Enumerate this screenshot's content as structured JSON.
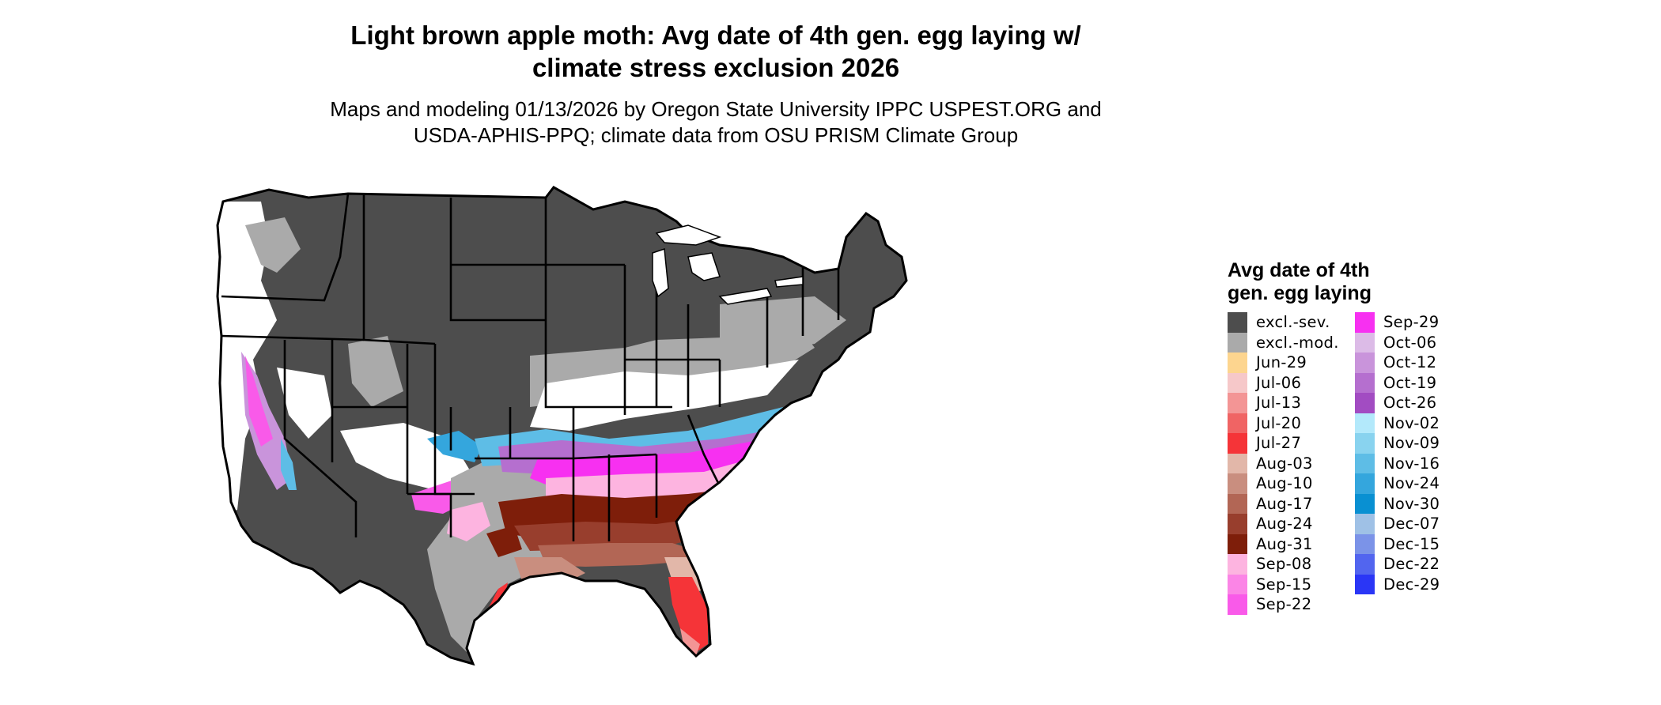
{
  "title": {
    "line1": "Light brown apple moth: Avg date of 4th gen. egg laying w/",
    "line2": "climate stress exclusion 2026"
  },
  "subtitle": {
    "line1": "Maps and modeling 01/13/2026 by Oregon State University IPPC USPEST.ORG and",
    "line2": "USDA-APHIS-PPQ; climate data from OSU PRISM Climate Group"
  },
  "legend": {
    "title_line1": "Avg date of 4th",
    "title_line2": "gen. egg laying",
    "items": [
      {
        "label": "excl.-sev.",
        "color": "#4d4d4d"
      },
      {
        "label": "excl.-mod.",
        "color": "#aaaaaa"
      },
      {
        "label": "Jun-29",
        "color": "#fdd58f"
      },
      {
        "label": "Jul-06",
        "color": "#f6c8c9"
      },
      {
        "label": "Jul-13",
        "color": "#f39595"
      },
      {
        "label": "Jul-20",
        "color": "#f06464"
      },
      {
        "label": "Jul-27",
        "color": "#f53438"
      },
      {
        "label": "Aug-03",
        "color": "#e2b7a9"
      },
      {
        "label": "Aug-10",
        "color": "#c98e7f"
      },
      {
        "label": "Aug-17",
        "color": "#b26655"
      },
      {
        "label": "Aug-24",
        "color": "#983e2d"
      },
      {
        "label": "Aug-31",
        "color": "#7e1e0a"
      },
      {
        "label": "Sep-08",
        "color": "#fdb4e0"
      },
      {
        "label": "Sep-15",
        "color": "#fb85e6"
      },
      {
        "label": "Sep-22",
        "color": "#f95ae9"
      },
      {
        "label": "Sep-29",
        "color": "#f730f1"
      },
      {
        "label": "Oct-06",
        "color": "#dcbbe7"
      },
      {
        "label": "Oct-12",
        "color": "#c994db"
      },
      {
        "label": "Oct-19",
        "color": "#b56fcf"
      },
      {
        "label": "Oct-26",
        "color": "#a24cc2"
      },
      {
        "label": "Nov-02",
        "color": "#b3e9fb"
      },
      {
        "label": "Nov-09",
        "color": "#89d3ef"
      },
      {
        "label": "Nov-16",
        "color": "#5ebde6"
      },
      {
        "label": "Nov-24",
        "color": "#34a6dd"
      },
      {
        "label": "Nov-30",
        "color": "#0990d2"
      },
      {
        "label": "Dec-07",
        "color": "#9fc1e6"
      },
      {
        "label": "Dec-15",
        "color": "#7b93e8"
      },
      {
        "label": "Dec-22",
        "color": "#5265ef"
      },
      {
        "label": "Dec-29",
        "color": "#2a36f6"
      }
    ]
  }
}
